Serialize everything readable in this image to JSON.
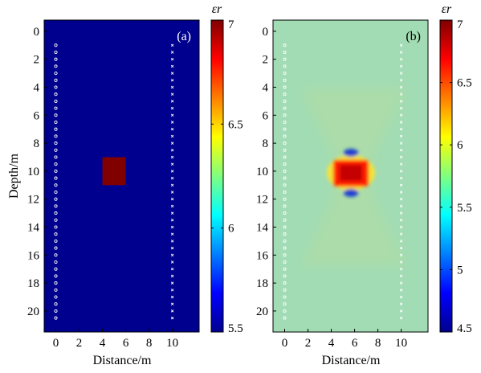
{
  "chart_data": [
    {
      "type": "heatmap",
      "panel_label": "(a)",
      "xlabel": "Distance/m",
      "ylabel": "Depth/m",
      "xlim": [
        -1,
        12.3
      ],
      "ylim": [
        21.5,
        -0.8
      ],
      "x_ticks": [
        0,
        2,
        4,
        6,
        8,
        10
      ],
      "y_ticks": [
        0,
        2,
        4,
        6,
        8,
        10,
        12,
        14,
        16,
        18,
        20
      ],
      "background_value": 5.5,
      "anomaly": {
        "x": [
          4,
          6
        ],
        "y": [
          9,
          11
        ],
        "value": 7
      },
      "sources": {
        "x": 0,
        "y_range": [
          1,
          20.5
        ],
        "marker": "circle"
      },
      "receivers": {
        "x": 10,
        "y_range": [
          1,
          20.5
        ],
        "marker": "x"
      },
      "colorbar": {
        "title": "εr",
        "range": [
          5.5,
          7
        ],
        "ticks": [
          "5.5",
          "6",
          "6.5",
          "7"
        ]
      },
      "grid": false
    },
    {
      "type": "heatmap",
      "panel_label": "(b)",
      "xlabel": "Distance/m",
      "ylabel": "",
      "xlim": [
        -1,
        12.3
      ],
      "ylim": [
        21.5,
        -0.8
      ],
      "x_ticks": [
        0,
        2,
        4,
        6,
        8,
        10
      ],
      "y_ticks": [
        0,
        2,
        4,
        6,
        8,
        10,
        12,
        14,
        16,
        18,
        20
      ],
      "background_value": 5.5,
      "anomaly": {
        "x": [
          4,
          6
        ],
        "y": [
          9,
          11
        ],
        "value": 7
      },
      "sources": {
        "x": 0,
        "y_range": [
          1,
          20.5
        ],
        "marker": "circle"
      },
      "receivers": {
        "x": 10,
        "y_range": [
          1,
          20.5
        ],
        "marker": "x"
      },
      "colorbar": {
        "title": "εr",
        "range": [
          4.5,
          7
        ],
        "ticks": [
          "4.5",
          "5",
          "5.5",
          "6",
          "6.5",
          "7"
        ]
      },
      "grid": false
    }
  ]
}
